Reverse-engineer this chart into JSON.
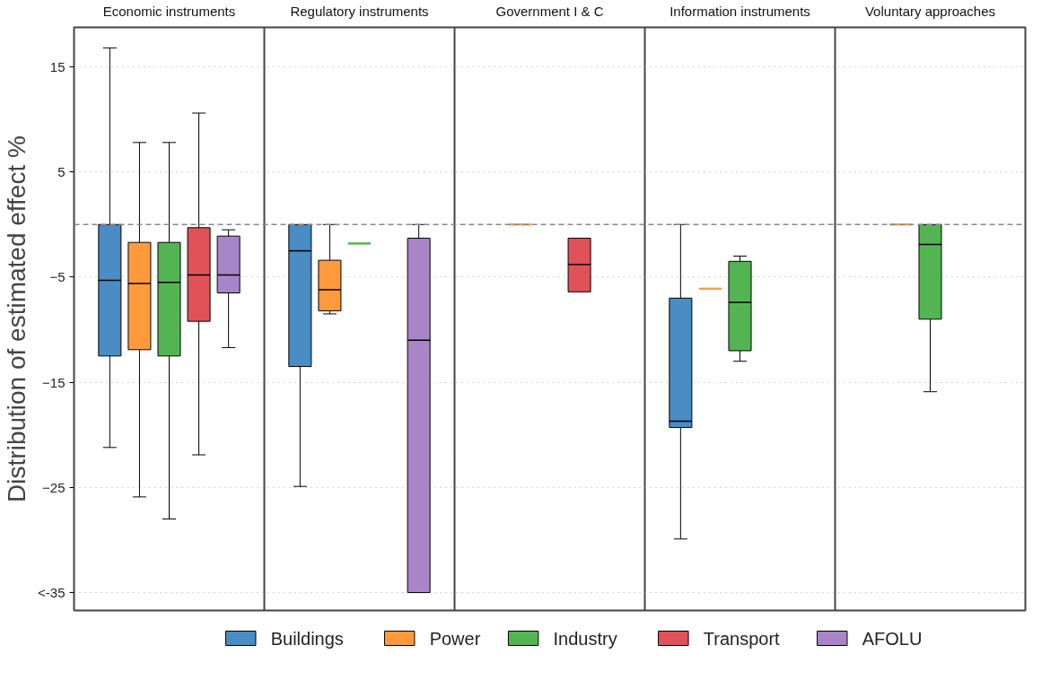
{
  "chart_data": {
    "type": "box",
    "ylabel": "Distribution of estimated effect %",
    "categories": [
      "Economic instruments",
      "Regulatory instruments",
      "Government I & C",
      "Information instruments",
      "Voluntary approaches"
    ],
    "ylim": [
      -36.7,
      18.75
    ],
    "yticks": [
      15,
      5,
      -5,
      -15,
      -25,
      {
        "value": -35,
        "label": "<-35"
      }
    ],
    "grid": "y",
    "legend": "bottom",
    "ref_lines": [
      {
        "axis": "y",
        "value": 0,
        "color": "#888888",
        "line_style": "dashed"
      }
    ],
    "series": [
      {
        "name": "Buildings",
        "color": "#4a8cc4",
        "boxes": [
          {
            "low": -21.2,
            "q1": -12.5,
            "median": -5.3,
            "q3": 0,
            "high": 16.8
          },
          {
            "low": -24.9,
            "q1": -13.5,
            "median": -2.5,
            "q3": 0,
            "high": 0
          },
          null,
          {
            "low": -29.9,
            "q1": -19.3,
            "median": -18.7,
            "q3": -7,
            "high": 0
          },
          null
        ]
      },
      {
        "name": "Power",
        "color": "#ff9a3c",
        "boxes": [
          {
            "low": -25.9,
            "q1": -11.9,
            "median": -5.6,
            "q3": -1.7,
            "high": 7.8
          },
          {
            "low": -8.5,
            "q1": -8.2,
            "median": -6.2,
            "q3": -3.4,
            "high": 0
          },
          {
            "low": 0,
            "q1": 0,
            "median": 0,
            "q3": 0,
            "high": 0
          },
          {
            "low": -6.1,
            "q1": -6.1,
            "median": -6.1,
            "q3": -6.1,
            "high": -6.1
          },
          {
            "low": 0,
            "q1": 0,
            "median": 0,
            "q3": 0,
            "high": 0
          }
        ]
      },
      {
        "name": "Industry",
        "color": "#52b552",
        "boxes": [
          {
            "low": -28,
            "q1": -12.5,
            "median": -5.5,
            "q3": -1.7,
            "high": 7.8
          },
          {
            "low": -1.8,
            "q1": -1.8,
            "median": -1.8,
            "q3": -1.8,
            "high": -1.8
          },
          null,
          {
            "low": -13,
            "q1": -12,
            "median": -7.4,
            "q3": -3.5,
            "high": -3
          },
          {
            "low": -15.9,
            "q1": -9,
            "median": -1.9,
            "q3": 0,
            "high": 0
          }
        ]
      },
      {
        "name": "Transport",
        "color": "#e05257",
        "boxes": [
          {
            "low": -21.9,
            "q1": -9.2,
            "median": -4.8,
            "q3": -0.3,
            "high": 10.6
          },
          null,
          {
            "low": -6.4,
            "q1": -6.4,
            "median": -3.8,
            "q3": -1.3,
            "high": -1.3
          },
          null,
          null
        ]
      },
      {
        "name": "AFOLU",
        "color": "#a885c8",
        "boxes": [
          {
            "low": -11.7,
            "q1": -6.5,
            "median": -4.8,
            "q3": -1.1,
            "high": -0.5
          },
          {
            "low": -35,
            "q1": -35,
            "median": -11,
            "q3": -1.3,
            "high": 0
          },
          null,
          null,
          null
        ]
      }
    ]
  }
}
